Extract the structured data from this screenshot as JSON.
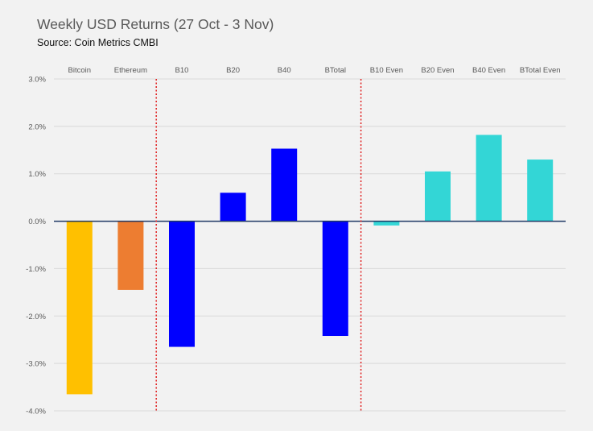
{
  "chart_data": {
    "type": "bar",
    "title": "Weekly USD Returns (27 Oct - 3 Nov)",
    "subtitle": "Source: Coin Metrics CMBI",
    "xlabel": "",
    "ylabel": "",
    "categories": [
      "Bitcoin",
      "Ethereum",
      "B10",
      "B20",
      "B40",
      "BTotal",
      "B10 Even",
      "B20 Even",
      "B40 Even",
      "BTotal Even"
    ],
    "values": [
      -3.65,
      -1.45,
      -2.65,
      0.6,
      1.53,
      -2.42,
      -0.09,
      1.05,
      1.82,
      1.3
    ],
    "colors": [
      "#ffc000",
      "#ed7d31",
      "#0000ff",
      "#0000ff",
      "#0000ff",
      "#0000ff",
      "#33d6d6",
      "#33d6d6",
      "#33d6d6",
      "#33d6d6"
    ],
    "ylim": [
      -4.0,
      3.0
    ],
    "yticks": [
      3.0,
      2.0,
      1.0,
      0.0,
      -1.0,
      -2.0,
      -3.0,
      -4.0
    ],
    "ytick_labels": [
      "3.0%",
      "2.0%",
      "1.0%",
      "0.0%",
      "-1.0%",
      "-2.0%",
      "-3.0%",
      "-4.0%"
    ],
    "category_labels_position": "top",
    "grid": true,
    "gridline_color": "#d9d9d9",
    "zero_line_color": "#1f3864",
    "group_separators": {
      "after_categories": [
        "Ethereum",
        "BTotal"
      ],
      "style": "dotted",
      "color": "#e02020"
    },
    "legend": "none"
  }
}
